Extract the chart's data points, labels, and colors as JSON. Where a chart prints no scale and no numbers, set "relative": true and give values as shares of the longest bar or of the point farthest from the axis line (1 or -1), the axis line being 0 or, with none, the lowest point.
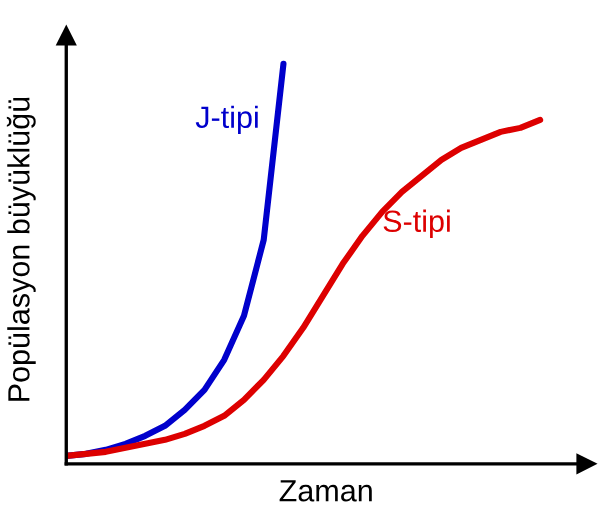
{
  "chart_data": {
    "type": "line",
    "relative": true,
    "xlabel": "Zaman",
    "ylabel": "Popülasyon büyüklüğü",
    "categories": [
      null,
      null,
      null,
      null,
      null,
      null,
      null,
      null,
      null,
      null,
      null,
      null,
      null,
      null,
      null,
      null,
      null,
      null,
      null,
      null,
      null,
      null,
      null,
      null,
      null
    ],
    "series": [
      {
        "name": "J-tipi",
        "color": "#0000cc",
        "values": [
          0.02,
          0.025,
          0.035,
          0.05,
          0.07,
          0.095,
          0.135,
          0.185,
          0.26,
          0.37,
          0.56,
          1.0,
          null,
          null,
          null,
          null,
          null,
          null,
          null,
          null,
          null,
          null,
          null,
          null,
          null
        ]
      },
      {
        "name": "S-tipi",
        "color": "#dd0000",
        "values": [
          0.02,
          0.025,
          0.03,
          0.04,
          0.05,
          0.06,
          0.075,
          0.095,
          0.12,
          0.16,
          0.21,
          0.27,
          0.34,
          0.42,
          0.5,
          0.57,
          0.63,
          0.68,
          0.72,
          0.76,
          0.79,
          0.81,
          0.83,
          0.84,
          0.86
        ]
      }
    ],
    "grid": false,
    "legend": false
  }
}
